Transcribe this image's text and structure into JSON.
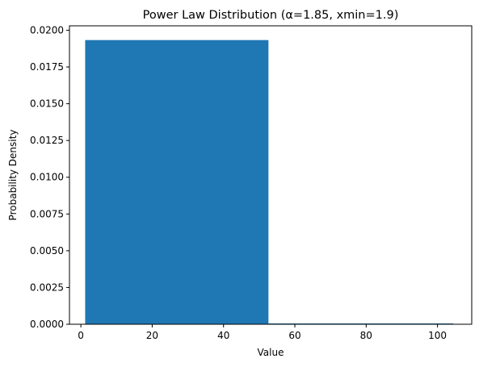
{
  "chart_data": {
    "type": "bar",
    "title": "Power Law Distribution (α=1.85, xmin=1.9)",
    "xlabel": "Value",
    "ylabel": "Probability Density",
    "xlim": [
      -3.2,
      109.6
    ],
    "ylim": [
      0,
      0.0203
    ],
    "x_ticks": [
      0,
      20,
      40,
      60,
      80,
      100
    ],
    "y_ticks": [
      0.0,
      0.0025,
      0.005,
      0.0075,
      0.01,
      0.0125,
      0.015,
      0.0175,
      0.02
    ],
    "x_tick_labels": [
      "0",
      "20",
      "40",
      "60",
      "80",
      "100"
    ],
    "y_tick_labels": [
      "0.0000",
      "0.0025",
      "0.0050",
      "0.0075",
      "0.0100",
      "0.0125",
      "0.0150",
      "0.0175",
      "0.0200"
    ],
    "bins": [
      {
        "x0": 1.2,
        "x1": 52.6,
        "value": 0.01933
      },
      {
        "x0": 52.6,
        "x1": 104.4,
        "value": 3e-05
      }
    ],
    "bar_color": "#1f77b4",
    "grid": false,
    "legend": false
  }
}
